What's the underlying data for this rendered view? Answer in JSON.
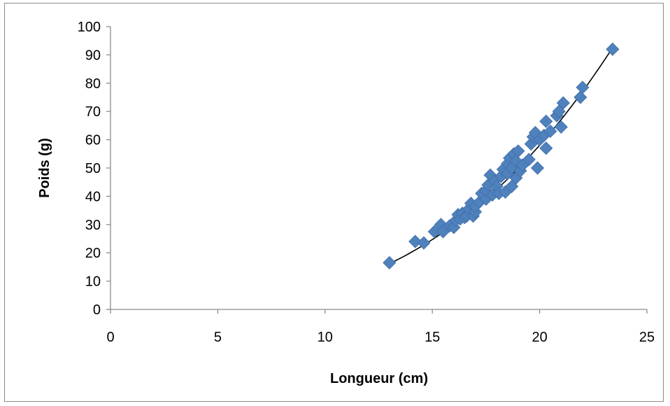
{
  "chart_data": {
    "type": "scatter",
    "title": "",
    "xlabel": "Longueur (cm)",
    "ylabel": "Poids (g)",
    "xlim": [
      0,
      25
    ],
    "ylim": [
      0,
      100
    ],
    "x_ticks": [
      "0",
      "5",
      "10",
      "15",
      "20",
      "25"
    ],
    "y_ticks": [
      "0",
      "10",
      "20",
      "30",
      "40",
      "50",
      "60",
      "70",
      "80",
      "90",
      "100"
    ],
    "grid": false,
    "legend": "none",
    "marker": "diamond",
    "marker_color": "#4F81BD",
    "trendline": {
      "type": "power",
      "color": "#000000",
      "a": 0.00794,
      "b": 2.97,
      "x_range": [
        13.0,
        23.4
      ]
    },
    "series": [
      {
        "points": [
          [
            13.0,
            16.5
          ],
          [
            14.2,
            24.0
          ],
          [
            14.6,
            23.5
          ],
          [
            15.1,
            27.5
          ],
          [
            15.4,
            30.0
          ],
          [
            15.5,
            27.5
          ],
          [
            15.8,
            29.5
          ],
          [
            16.0,
            29.0
          ],
          [
            16.1,
            31.5
          ],
          [
            16.2,
            33.5
          ],
          [
            16.3,
            32.0
          ],
          [
            16.4,
            34.0
          ],
          [
            16.5,
            32.5
          ],
          [
            16.6,
            33.0
          ],
          [
            16.7,
            35.5
          ],
          [
            16.8,
            37.5
          ],
          [
            16.9,
            33.0
          ],
          [
            17.0,
            34.5
          ],
          [
            17.0,
            36.5
          ],
          [
            17.2,
            38.0
          ],
          [
            17.3,
            41.0
          ],
          [
            17.5,
            39.0
          ],
          [
            17.5,
            42.0
          ],
          [
            17.6,
            44.0
          ],
          [
            17.7,
            47.5
          ],
          [
            17.8,
            40.5
          ],
          [
            17.9,
            45.5
          ],
          [
            18.0,
            43.5
          ],
          [
            18.1,
            41.0
          ],
          [
            18.2,
            47.0
          ],
          [
            18.3,
            49.5
          ],
          [
            18.4,
            41.5
          ],
          [
            18.5,
            48.0
          ],
          [
            18.5,
            51.5
          ],
          [
            18.6,
            53.5
          ],
          [
            18.7,
            43.5
          ],
          [
            18.7,
            50.0
          ],
          [
            18.8,
            55.0
          ],
          [
            18.9,
            46.5
          ],
          [
            18.9,
            52.5
          ],
          [
            19.0,
            56.0
          ],
          [
            19.1,
            49.0
          ],
          [
            19.2,
            51.0
          ],
          [
            19.5,
            53.0
          ],
          [
            19.6,
            58.5
          ],
          [
            19.7,
            61.0
          ],
          [
            19.8,
            62.5
          ],
          [
            19.9,
            50.0
          ],
          [
            20.0,
            60.0
          ],
          [
            20.2,
            61.5
          ],
          [
            20.3,
            57.0
          ],
          [
            20.3,
            66.5
          ],
          [
            20.5,
            63.0
          ],
          [
            20.8,
            68.5
          ],
          [
            20.9,
            70.0
          ],
          [
            21.0,
            64.5
          ],
          [
            21.1,
            73.0
          ],
          [
            21.9,
            75.0
          ],
          [
            22.0,
            78.5
          ],
          [
            23.4,
            92.0
          ]
        ]
      }
    ]
  }
}
